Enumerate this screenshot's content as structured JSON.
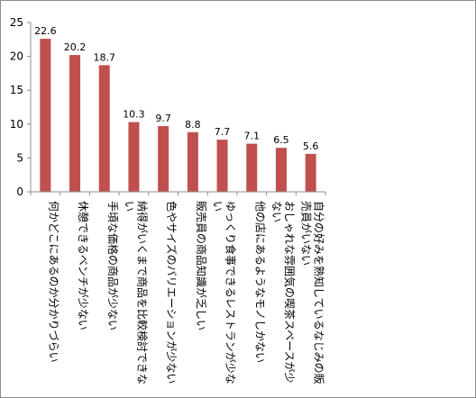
{
  "chart_data": {
    "type": "bar",
    "title": "",
    "xlabel": "",
    "ylabel": "",
    "ylim": [
      0,
      25
    ],
    "yticks": [
      0,
      5,
      10,
      15,
      20,
      25
    ],
    "grid": false,
    "bar_color": "#c0504d",
    "categories": [
      [
        "何かどこにあるのか分かりづらい"
      ],
      [
        "休憩できるベンチが少ない"
      ],
      [
        "手頃な価格の商品が少ない"
      ],
      [
        "納得がいくまで商品を比較検討できな",
        "い"
      ],
      [
        "色やサイズのバリエーションが少ない"
      ],
      [
        "販売員の商品知識が乏しい"
      ],
      [
        "ゆっくり食事できるレストランが少な",
        "い"
      ],
      [
        "他の店にあるようなモノしかない"
      ],
      [
        "おしゃれな雰囲気の喫茶スペースが少",
        "ない"
      ],
      [
        "自分の好みを熟知しているなじみの販",
        "売員がいない"
      ]
    ],
    "values": [
      22.6,
      20.2,
      18.7,
      10.3,
      9.7,
      8.8,
      7.7,
      7.1,
      6.5,
      5.6
    ],
    "data_labels": [
      "22.6",
      "20.2",
      "18.7",
      "10.3",
      "9.7",
      "8.8",
      "7.7",
      "7.1",
      "6.5",
      "5.6"
    ]
  }
}
